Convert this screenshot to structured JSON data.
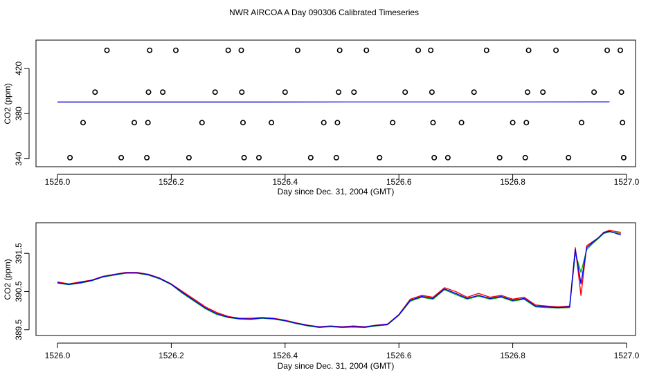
{
  "title": "NWR AIRCOA A  Day 090306  Calibrated Timeseries",
  "colors": {
    "red": "#ff0000",
    "green": "#00b000",
    "blue": "#0000ff",
    "axis": "#000000"
  },
  "chart_data": [
    {
      "type": "scatter",
      "xlabel": "Day since Dec. 31, 2004 (GMT)",
      "ylabel": "CO2 (ppm)",
      "xlim": [
        1526.0,
        1527.0
      ],
      "ylim": [
        333,
        445
      ],
      "xticks": [
        1526.0,
        1526.2,
        1526.4,
        1526.6,
        1526.8,
        1527.0
      ],
      "xtick_labels": [
        "1526.0",
        "1526.2",
        "1526.4",
        "1526.6",
        "1526.8",
        "1527.0"
      ],
      "yticks": [
        340,
        380,
        420
      ],
      "ytick_labels": [
        "340",
        "380",
        "420"
      ],
      "calibration_points": [
        {
          "x": 1526.022,
          "y": 341
        },
        {
          "x": 1526.045,
          "y": 372
        },
        {
          "x": 1526.066,
          "y": 399
        },
        {
          "x": 1526.087,
          "y": 436
        },
        {
          "x": 1526.112,
          "y": 341
        },
        {
          "x": 1526.135,
          "y": 372
        },
        {
          "x": 1526.157,
          "y": 341
        },
        {
          "x": 1526.159,
          "y": 372
        },
        {
          "x": 1526.16,
          "y": 399
        },
        {
          "x": 1526.162,
          "y": 436
        },
        {
          "x": 1526.185,
          "y": 399
        },
        {
          "x": 1526.208,
          "y": 436
        },
        {
          "x": 1526.231,
          "y": 341
        },
        {
          "x": 1526.254,
          "y": 372
        },
        {
          "x": 1526.277,
          "y": 399
        },
        {
          "x": 1526.3,
          "y": 436
        },
        {
          "x": 1526.323,
          "y": 436
        },
        {
          "x": 1526.324,
          "y": 399
        },
        {
          "x": 1526.326,
          "y": 372
        },
        {
          "x": 1526.328,
          "y": 341
        },
        {
          "x": 1526.354,
          "y": 341
        },
        {
          "x": 1526.376,
          "y": 372
        },
        {
          "x": 1526.4,
          "y": 399
        },
        {
          "x": 1526.422,
          "y": 436
        },
        {
          "x": 1526.445,
          "y": 341
        },
        {
          "x": 1526.468,
          "y": 372
        },
        {
          "x": 1526.49,
          "y": 341
        },
        {
          "x": 1526.492,
          "y": 372
        },
        {
          "x": 1526.494,
          "y": 399
        },
        {
          "x": 1526.496,
          "y": 436
        },
        {
          "x": 1526.521,
          "y": 399
        },
        {
          "x": 1526.543,
          "y": 436
        },
        {
          "x": 1526.566,
          "y": 341
        },
        {
          "x": 1526.589,
          "y": 372
        },
        {
          "x": 1526.611,
          "y": 399
        },
        {
          "x": 1526.634,
          "y": 436
        },
        {
          "x": 1526.656,
          "y": 436
        },
        {
          "x": 1526.658,
          "y": 399
        },
        {
          "x": 1526.66,
          "y": 372
        },
        {
          "x": 1526.662,
          "y": 341
        },
        {
          "x": 1526.686,
          "y": 341
        },
        {
          "x": 1526.71,
          "y": 372
        },
        {
          "x": 1526.732,
          "y": 399
        },
        {
          "x": 1526.754,
          "y": 436
        },
        {
          "x": 1526.777,
          "y": 341
        },
        {
          "x": 1526.8,
          "y": 372
        },
        {
          "x": 1526.822,
          "y": 341
        },
        {
          "x": 1526.824,
          "y": 372
        },
        {
          "x": 1526.826,
          "y": 399
        },
        {
          "x": 1526.828,
          "y": 436
        },
        {
          "x": 1526.853,
          "y": 399
        },
        {
          "x": 1526.876,
          "y": 436
        },
        {
          "x": 1526.898,
          "y": 341
        },
        {
          "x": 1526.921,
          "y": 372
        },
        {
          "x": 1526.943,
          "y": 399
        },
        {
          "x": 1526.966,
          "y": 436
        },
        {
          "x": 1526.989,
          "y": 436
        },
        {
          "x": 1526.991,
          "y": 399
        },
        {
          "x": 1526.993,
          "y": 372
        },
        {
          "x": 1526.995,
          "y": 341
        }
      ],
      "series": [
        {
          "color": "red",
          "x": [
            1526.0,
            1526.97
          ],
          "y": [
            390.2,
            390.3
          ]
        },
        {
          "color": "green",
          "x": [
            1526.0,
            1526.97
          ],
          "y": [
            390.2,
            390.3
          ]
        },
        {
          "color": "blue",
          "x": [
            1526.0,
            1526.97
          ],
          "y": [
            390.2,
            390.3
          ]
        }
      ]
    },
    {
      "type": "line",
      "xlabel": "Day since Dec. 31, 2004 (GMT)",
      "ylabel": "CO2 (ppm)",
      "xlim": [
        1526.0,
        1527.0
      ],
      "ylim": [
        389.35,
        392.3
      ],
      "xticks": [
        1526.0,
        1526.2,
        1526.4,
        1526.6,
        1526.8,
        1527.0
      ],
      "xtick_labels": [
        "1526.0",
        "1526.2",
        "1526.4",
        "1526.6",
        "1526.8",
        "1527.0"
      ],
      "yticks": [
        389.5,
        390.5,
        391.5
      ],
      "ytick_labels": [
        "389.5",
        "390.5",
        "391.5"
      ],
      "x": [
        1526.0,
        1526.02,
        1526.04,
        1526.06,
        1526.08,
        1526.1,
        1526.12,
        1526.14,
        1526.16,
        1526.18,
        1526.2,
        1526.22,
        1526.24,
        1526.26,
        1526.28,
        1526.3,
        1526.32,
        1526.34,
        1526.36,
        1526.38,
        1526.4,
        1526.42,
        1526.44,
        1526.46,
        1526.48,
        1526.5,
        1526.52,
        1526.54,
        1526.56,
        1526.58,
        1526.6,
        1526.62,
        1526.64,
        1526.66,
        1526.68,
        1526.7,
        1526.72,
        1526.74,
        1526.76,
        1526.78,
        1526.8,
        1526.82,
        1526.84,
        1526.86,
        1526.88,
        1526.9,
        1526.91,
        1526.92,
        1526.93,
        1526.94,
        1526.95,
        1526.96,
        1526.97,
        1526.99
      ],
      "series": [
        {
          "color": "red",
          "y": [
            390.75,
            390.7,
            390.75,
            390.8,
            390.9,
            390.95,
            391.0,
            391.0,
            390.95,
            390.85,
            390.7,
            390.5,
            390.3,
            390.1,
            389.95,
            389.85,
            389.8,
            389.8,
            389.82,
            389.8,
            389.75,
            389.68,
            389.62,
            389.58,
            389.6,
            389.58,
            389.6,
            389.58,
            389.62,
            389.65,
            389.9,
            390.3,
            390.4,
            390.35,
            390.6,
            390.5,
            390.35,
            390.45,
            390.35,
            390.4,
            390.3,
            390.35,
            390.15,
            390.12,
            390.1,
            390.12,
            391.65,
            390.4,
            391.7,
            391.8,
            391.9,
            392.05,
            392.1,
            392.05
          ]
        },
        {
          "color": "green",
          "y": [
            390.72,
            390.68,
            390.72,
            390.78,
            390.88,
            390.93,
            390.98,
            390.98,
            390.93,
            390.83,
            390.68,
            390.45,
            390.25,
            390.05,
            389.9,
            389.82,
            389.78,
            389.77,
            389.8,
            389.78,
            389.73,
            389.66,
            389.6,
            389.56,
            389.58,
            389.56,
            389.57,
            389.56,
            389.6,
            389.63,
            389.88,
            390.25,
            390.35,
            390.3,
            390.55,
            390.42,
            390.3,
            390.38,
            390.3,
            390.35,
            390.25,
            390.3,
            390.1,
            390.08,
            390.07,
            390.08,
            391.5,
            391.0,
            391.6,
            391.75,
            391.88,
            392.02,
            392.06,
            392.02
          ]
        },
        {
          "color": "blue",
          "y": [
            390.73,
            390.69,
            390.73,
            390.79,
            390.89,
            390.94,
            390.99,
            390.99,
            390.94,
            390.84,
            390.69,
            390.47,
            390.27,
            390.07,
            389.92,
            389.83,
            389.79,
            389.78,
            389.81,
            389.79,
            389.74,
            389.67,
            389.61,
            389.57,
            389.59,
            389.57,
            389.58,
            389.57,
            389.61,
            389.64,
            389.89,
            390.27,
            390.37,
            390.32,
            390.57,
            390.45,
            390.32,
            390.4,
            390.32,
            390.37,
            390.27,
            390.32,
            390.12,
            390.1,
            390.08,
            390.1,
            391.6,
            390.7,
            391.65,
            391.78,
            391.9,
            392.04,
            392.08,
            391.98
          ]
        }
      ]
    }
  ]
}
